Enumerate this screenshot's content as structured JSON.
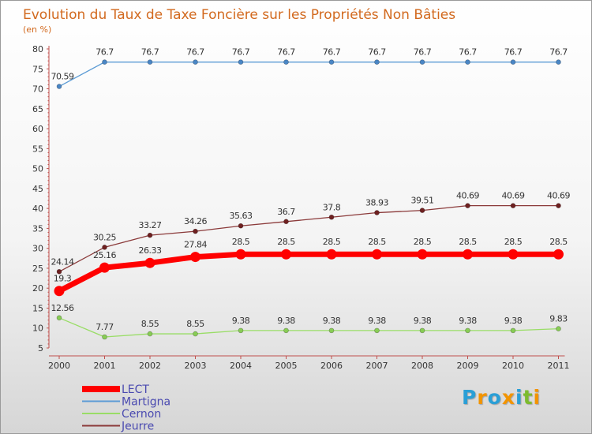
{
  "chart_data": {
    "type": "line",
    "title": "Evolution du Taux de Taxe Foncière sur les Propriétés Non Bâties",
    "subtitle": "(en %)",
    "xlabel": "",
    "ylabel": "",
    "categories": [
      "2000",
      "2001",
      "2002",
      "2003",
      "2004",
      "2005",
      "2006",
      "2007",
      "2008",
      "2009",
      "2010",
      "2011"
    ],
    "ylim": [
      5,
      80
    ],
    "yticks": [
      5,
      10,
      15,
      20,
      25,
      30,
      35,
      40,
      45,
      50,
      55,
      60,
      65,
      70,
      75,
      80
    ],
    "grid": false,
    "legend_position": "bottom-left",
    "series": [
      {
        "name": "Martigna",
        "color": "#5b9bd5",
        "marker": "#4a86c5",
        "thick": false,
        "values": [
          70.59,
          76.7,
          76.7,
          76.7,
          76.7,
          76.7,
          76.7,
          76.7,
          76.7,
          76.7,
          76.7,
          76.7
        ],
        "labels": [
          "70.59",
          "76.7",
          "76.7",
          "76.7",
          "76.7",
          "76.7",
          "76.7",
          "76.7",
          "76.7",
          "76.7",
          "76.7",
          "76.7"
        ]
      },
      {
        "name": "Jeurre",
        "color": "#8b3a3a",
        "marker": "#6e2020",
        "thick": false,
        "values": [
          24.14,
          30.25,
          33.27,
          34.26,
          35.63,
          36.7,
          37.8,
          38.93,
          39.51,
          40.69,
          40.69,
          40.69
        ],
        "labels": [
          "24.14",
          "30.25",
          "33.27",
          "34.26",
          "35.63",
          "36.7",
          "37.8",
          "38.93",
          "39.51",
          "40.69",
          "40.69",
          "40.69"
        ]
      },
      {
        "name": "LECT",
        "color": "#ff0000",
        "marker": "#ff0000",
        "thick": true,
        "values": [
          19.3,
          25.16,
          26.33,
          27.84,
          28.5,
          28.5,
          28.5,
          28.5,
          28.5,
          28.5,
          28.5,
          28.5
        ],
        "labels": [
          "19.3",
          "25.16",
          "26.33",
          "27.84",
          "28.5",
          "28.5",
          "28.5",
          "28.5",
          "28.5",
          "28.5",
          "28.5",
          "28.5"
        ]
      },
      {
        "name": "Cernon",
        "color": "#99dd66",
        "marker": "#88cc55",
        "thick": false,
        "values": [
          12.56,
          7.77,
          8.55,
          8.55,
          9.38,
          9.38,
          9.38,
          9.38,
          9.38,
          9.38,
          9.38,
          9.83
        ],
        "labels": [
          "12.56",
          "7.77",
          "8.55",
          "8.55",
          "9.38",
          "9.38",
          "9.38",
          "9.38",
          "9.38",
          "9.38",
          "9.38",
          "9.83"
        ]
      }
    ],
    "legend_order": [
      "LECT",
      "Martigna",
      "Cernon",
      "Jeurre"
    ]
  },
  "brand": {
    "letters": [
      "P",
      "r",
      "o",
      "x",
      "i",
      "t",
      "i"
    ],
    "colors": [
      "#2a9fd6",
      "#f29400",
      "#2a9fd6",
      "#f29400",
      "#2a9fd6",
      "#7dbb2e",
      "#f29400"
    ]
  },
  "colors": {
    "axis": "#c0504d",
    "title": "#d2691e",
    "legend_text": "#4a4ab0"
  }
}
